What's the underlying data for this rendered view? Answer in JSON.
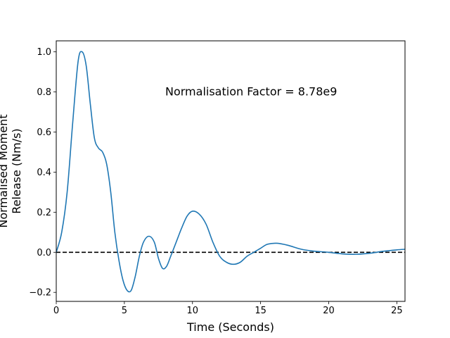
{
  "chart_data": {
    "type": "line",
    "title": "",
    "xlabel": "Time (Seconds)",
    "ylabel_lines": [
      "Normalised Moment",
      "Release (Nm/s)"
    ],
    "xlim": [
      0,
      25.6
    ],
    "ylim": [
      -0.245,
      1.055
    ],
    "xticks": [
      0,
      5,
      10,
      15,
      20,
      25
    ],
    "xtick_labels": [
      "0",
      "5",
      "10",
      "15",
      "20",
      "25"
    ],
    "yticks": [
      -0.2,
      0.0,
      0.2,
      0.4,
      0.6,
      0.8,
      1.0
    ],
    "ytick_labels": [
      "−0.2",
      "0.0",
      "0.2",
      "0.4",
      "0.6",
      "0.8",
      "1.0"
    ],
    "grid": false,
    "annotation": {
      "text": "Normalisation Factor = 8.78e9",
      "x": 8.0,
      "y": 0.8
    },
    "reference_line": {
      "y": 0,
      "style": "dashed",
      "color": "#000000"
    },
    "series": [
      {
        "color": "#1f77b4",
        "x": [
          0,
          0.4,
          0.8,
          1.2,
          1.6,
          1.9,
          2.2,
          2.5,
          2.8,
          3.1,
          3.4,
          3.7,
          4.0,
          4.3,
          4.6,
          4.9,
          5.2,
          5.5,
          5.8,
          6.1,
          6.4,
          6.8,
          7.2,
          7.5,
          7.8,
          8.1,
          8.4,
          8.8,
          9.2,
          9.6,
          10.0,
          10.5,
          11.0,
          11.5,
          12.0,
          12.5,
          13.0,
          13.5,
          14.0,
          14.5,
          15.0,
          15.5,
          16.2,
          17.0,
          18.0,
          19.0,
          20.0,
          21.0,
          22.0,
          23.0,
          24.0,
          25.0,
          25.6
        ],
        "y": [
          0.0,
          0.1,
          0.3,
          0.64,
          0.95,
          1.0,
          0.93,
          0.74,
          0.57,
          0.52,
          0.5,
          0.44,
          0.3,
          0.1,
          -0.04,
          -0.14,
          -0.19,
          -0.19,
          -0.12,
          -0.02,
          0.05,
          0.08,
          0.05,
          -0.03,
          -0.08,
          -0.07,
          -0.02,
          0.05,
          0.12,
          0.18,
          0.205,
          0.19,
          0.14,
          0.05,
          -0.02,
          -0.05,
          -0.06,
          -0.05,
          -0.02,
          0.0,
          0.02,
          0.04,
          0.045,
          0.035,
          0.015,
          0.005,
          0.0,
          -0.008,
          -0.01,
          -0.005,
          0.005,
          0.012,
          0.015
        ]
      }
    ]
  }
}
